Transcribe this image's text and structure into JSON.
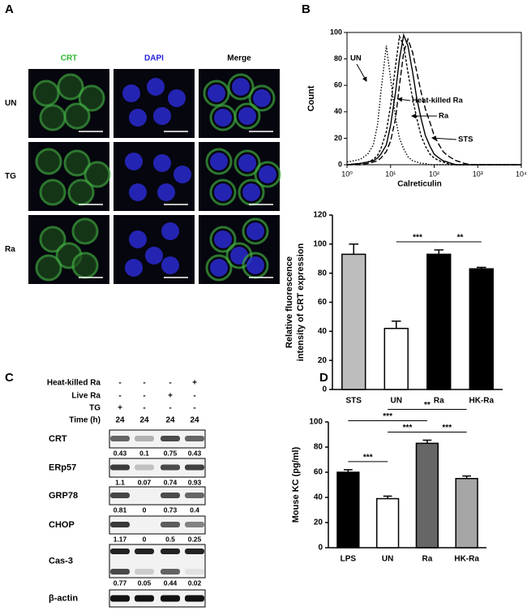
{
  "figure_a": {
    "label": "A",
    "columns": [
      "CRT",
      "DAPI",
      "Merge"
    ],
    "rows": [
      "UN",
      "TG",
      "Ra"
    ]
  },
  "figure_b": {
    "label": "B"
  },
  "figure_c": {
    "label": "C",
    "treatments": [
      {
        "name": "Heat-killed Ra",
        "values": [
          "-",
          "-",
          "-",
          "+"
        ]
      },
      {
        "name": "Live Ra",
        "values": [
          "-",
          "-",
          "+",
          "-"
        ]
      },
      {
        "name": "TG",
        "values": [
          "+",
          "-",
          "-",
          "-"
        ]
      },
      {
        "name": "Time (h)",
        "values": [
          "24",
          "24",
          "24",
          "24"
        ]
      }
    ],
    "blots": [
      {
        "name": "CRT",
        "values": [
          0.43,
          0.1,
          0.75,
          0.43
        ]
      },
      {
        "name": "ERp57",
        "values": [
          1.1,
          0.07,
          0.74,
          0.93
        ]
      },
      {
        "name": "GRP78",
        "values": [
          0.81,
          0,
          0.73,
          0.4
        ]
      },
      {
        "name": "CHOP",
        "values": [
          1.17,
          0,
          0.5,
          0.25
        ]
      },
      {
        "name": "Cas-3",
        "values": [
          0.77,
          0.05,
          0.44,
          0.02
        ]
      },
      {
        "name": "β-actin"
      }
    ]
  },
  "figure_d": {
    "label": "D"
  },
  "chart_data": [
    {
      "type": "line",
      "xlog": true,
      "xlabel": "Calreticulin",
      "ylabel": "Count",
      "xlim": [
        1,
        10000
      ],
      "xticks": [
        {
          "value": 1,
          "label": "10⁰"
        },
        {
          "value": 10,
          "label": "10¹"
        },
        {
          "value": 100,
          "label": "10²"
        },
        {
          "value": 1000,
          "label": "10³"
        },
        {
          "value": 10000,
          "label": "10⁴"
        }
      ],
      "ylim": [
        0,
        100
      ],
      "yticks": [
        0,
        20,
        40,
        60,
        80,
        100
      ],
      "x": [
        1,
        2,
        3,
        4,
        5,
        6,
        8,
        10,
        13,
        16,
        20,
        25,
        32,
        40,
        50,
        63,
        80,
        100,
        130,
        160,
        200,
        250,
        320,
        400,
        500,
        700,
        1000,
        3000,
        10000
      ],
      "series": [
        {
          "name": "UN",
          "color": "#000000",
          "dash": "1.5,2",
          "values": [
            2,
            4,
            8,
            15,
            30,
            55,
            90,
            65,
            35,
            20,
            12,
            6,
            3,
            2,
            1,
            1,
            0,
            0,
            0,
            0,
            0,
            0,
            0,
            0,
            0,
            0,
            0,
            0,
            0
          ]
        },
        {
          "name": "Heat-killed Ra",
          "color": "#000000",
          "dash": "3,2",
          "values": [
            0,
            1,
            2,
            4,
            7,
            12,
            25,
            45,
            75,
            97,
            90,
            70,
            50,
            35,
            22,
            14,
            8,
            5,
            3,
            2,
            1,
            0,
            0,
            0,
            0,
            0,
            0,
            0,
            0
          ]
        },
        {
          "name": "Ra",
          "color": "#000000",
          "dash": "none",
          "values": [
            0,
            1,
            2,
            3,
            5,
            8,
            15,
            30,
            55,
            80,
            98,
            90,
            70,
            50,
            35,
            22,
            14,
            8,
            5,
            3,
            2,
            1,
            0,
            0,
            0,
            0,
            0,
            0,
            0
          ]
        },
        {
          "name": "STS",
          "color": "#000000",
          "dash": "7,3",
          "values": [
            0,
            0,
            1,
            2,
            3,
            5,
            10,
            18,
            35,
            60,
            85,
            95,
            85,
            70,
            55,
            42,
            32,
            22,
            15,
            10,
            7,
            5,
            3,
            2,
            1,
            0,
            0,
            0,
            0
          ]
        }
      ]
    },
    {
      "type": "bar",
      "ylabel": [
        "Relative fluorescence",
        "intensity of CRT expression"
      ],
      "categories": [
        "STS",
        "UN",
        "Ra",
        "HK-Ra"
      ],
      "values": [
        93,
        42,
        93,
        83
      ],
      "errors": [
        7,
        5,
        3,
        1
      ],
      "colors": [
        "#bdbdbd",
        "#ffffff",
        "#000000",
        "#000000"
      ],
      "ylim": [
        0,
        120
      ],
      "yticks": [
        0,
        20,
        40,
        60,
        80,
        100,
        120
      ],
      "brackets": [
        {
          "label": "***",
          "between": [
            "UN",
            "Ra"
          ]
        },
        {
          "label": "**",
          "between": [
            "Ra",
            "HK-Ra"
          ]
        }
      ]
    },
    {
      "type": "bar",
      "ylabel": [
        "Mouse KC (pg/ml)"
      ],
      "categories": [
        "LPS",
        "UN",
        "Ra",
        "HK-Ra"
      ],
      "values": [
        60,
        39,
        83,
        55
      ],
      "errors": [
        2,
        2,
        2.5,
        2
      ],
      "colors": [
        "#000000",
        "#ffffff",
        "#666666",
        "#a6a6a6"
      ],
      "ylim": [
        0,
        100
      ],
      "yticks": [
        0,
        20,
        40,
        60,
        80,
        100
      ],
      "brackets": [
        {
          "label": "***",
          "between": [
            "LPS",
            "UN"
          ]
        },
        {
          "label": "***",
          "between": [
            "UN",
            "Ra"
          ]
        },
        {
          "label": "***",
          "between": [
            "Ra",
            "HK-Ra"
          ]
        },
        {
          "label": "***",
          "between": [
            "LPS",
            "Ra"
          ]
        },
        {
          "label": "**",
          "between": [
            "UN",
            "HK-Ra"
          ]
        }
      ]
    }
  ]
}
